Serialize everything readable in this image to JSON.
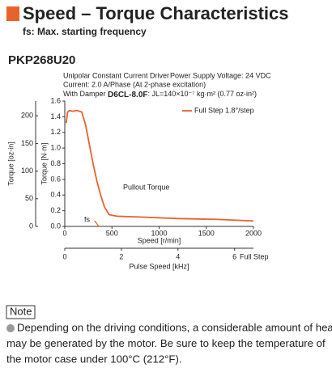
{
  "header": {
    "title": "Speed – Torque Characteristics",
    "subtitle": "fs: Max. starting frequency"
  },
  "model": "PKP268U20",
  "conditions": {
    "driver": "Unipolar Constant Current Driver",
    "voltage": "Power Supply Voltage: 24 VDC",
    "current": "Current: 2.0 A/Phase (At 2-phase excitation)",
    "damper_label": "With Damper",
    "damper_model": "D6CL-8.0F",
    "inertia": ": JL=140×10⁻⁷ kg·m² (0.77 oz-in²)"
  },
  "chart_data": {
    "type": "line",
    "x": [
      15,
      30,
      50,
      80,
      130,
      180,
      220,
      260,
      300,
      340,
      380,
      420,
      470,
      550,
      800,
      1200,
      1600,
      2000
    ],
    "series": [
      {
        "name": "Full Step 1.8°/step",
        "color": "#e8622c",
        "values": [
          1.32,
          1.46,
          1.48,
          1.47,
          1.48,
          1.46,
          1.3,
          1.05,
          0.8,
          0.58,
          0.4,
          0.25,
          0.15,
          0.13,
          0.12,
          0.1,
          0.09,
          0.07
        ]
      }
    ],
    "xlim": [
      0,
      2000
    ],
    "xticks": [
      0,
      500,
      1000,
      1500,
      2000
    ],
    "xlabel": "Speed [r/min]",
    "ylim": [
      0,
      1.6
    ],
    "yticks": [
      0,
      0.2,
      0.4,
      0.6,
      0.8,
      1.0,
      1.2,
      1.4,
      1.6
    ],
    "ylabel": "Torque [N·m]",
    "y2lim": [
      0,
      226.6
    ],
    "y2ticks": [
      0,
      50,
      100,
      150,
      200
    ],
    "y2label": "Torque [oz-in]",
    "x2lim": [
      0,
      6.667
    ],
    "x2ticks": [
      0,
      2,
      4,
      6
    ],
    "x2label": "Pulse Speed [kHz]",
    "x2note": "Full Step",
    "annotations": [
      "Pullout Torque",
      "fs"
    ],
    "legend": "upper right"
  },
  "note": {
    "label": "Note",
    "lines": [
      "Depending on the driving conditions, a considerable amount of heat",
      "may be generated by the motor. Be sure to keep the temperature of",
      "the motor case under 100°C (212°F)."
    ]
  }
}
